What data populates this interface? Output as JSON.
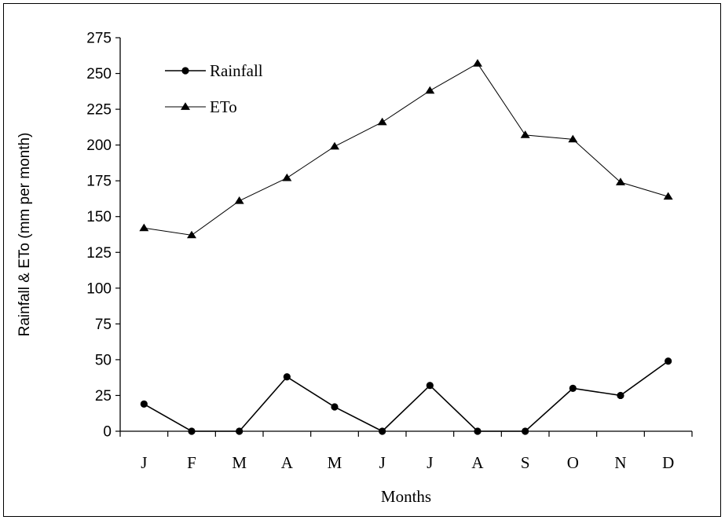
{
  "chart_data": {
    "type": "line",
    "categories": [
      "J",
      "F",
      "M",
      "A",
      "M",
      "J",
      "J",
      "A",
      "S",
      "O",
      "N",
      "D"
    ],
    "series": [
      {
        "name": "Rainfall",
        "marker": "circle",
        "values": [
          19,
          0,
          0,
          38,
          17,
          0,
          32,
          0,
          0,
          30,
          25,
          49
        ]
      },
      {
        "name": "ETo",
        "marker": "triangle",
        "values": [
          142,
          137,
          161,
          177,
          199,
          216,
          238,
          257,
          207,
          204,
          174,
          164
        ]
      }
    ],
    "xlabel": "Months",
    "ylabel": "Rainfall & ETo (mm per month)",
    "ylim": [
      0,
      275
    ],
    "yticks": [
      "0",
      "25",
      "50",
      "75",
      "100",
      "125",
      "150",
      "175",
      "200",
      "225",
      "250",
      "275"
    ],
    "grid": false,
    "legend_position": "top-left",
    "color": "#000000"
  }
}
